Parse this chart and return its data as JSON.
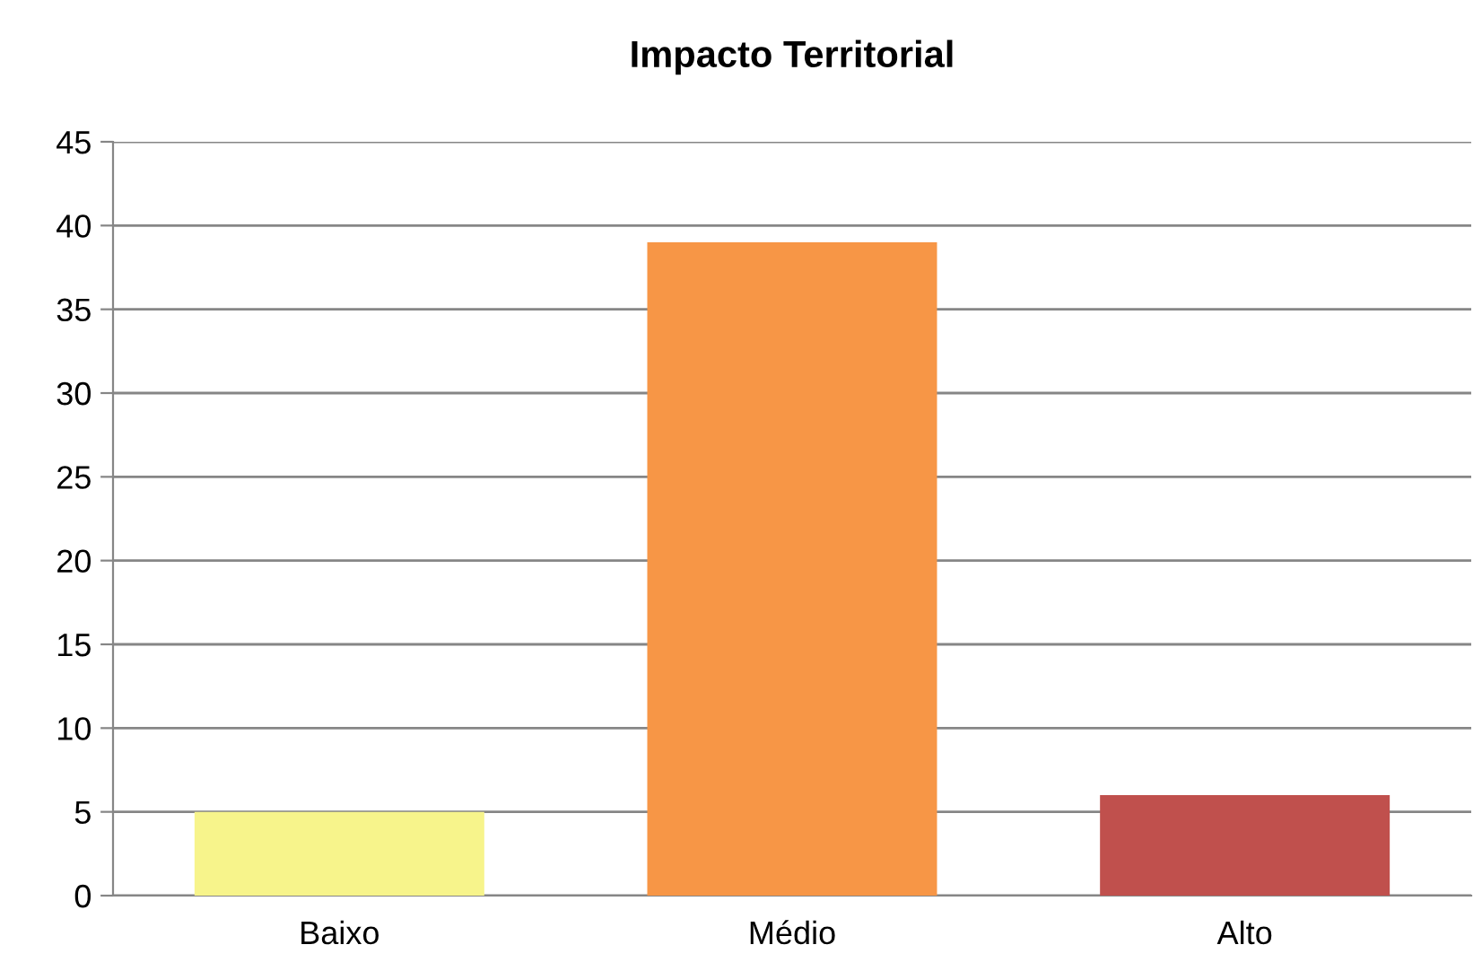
{
  "chart_data": {
    "type": "bar",
    "title": "Impacto Territorial",
    "categories": [
      "Baixo",
      "Médio",
      "Alto"
    ],
    "values": [
      5,
      39,
      6
    ],
    "colors": [
      "#f7f48b",
      "#f79646",
      "#c0504d"
    ],
    "ylim": [
      0,
      45
    ],
    "yticks": [
      0,
      5,
      10,
      15,
      20,
      25,
      30,
      35,
      40,
      45
    ],
    "grid": "y",
    "legend": false
  }
}
